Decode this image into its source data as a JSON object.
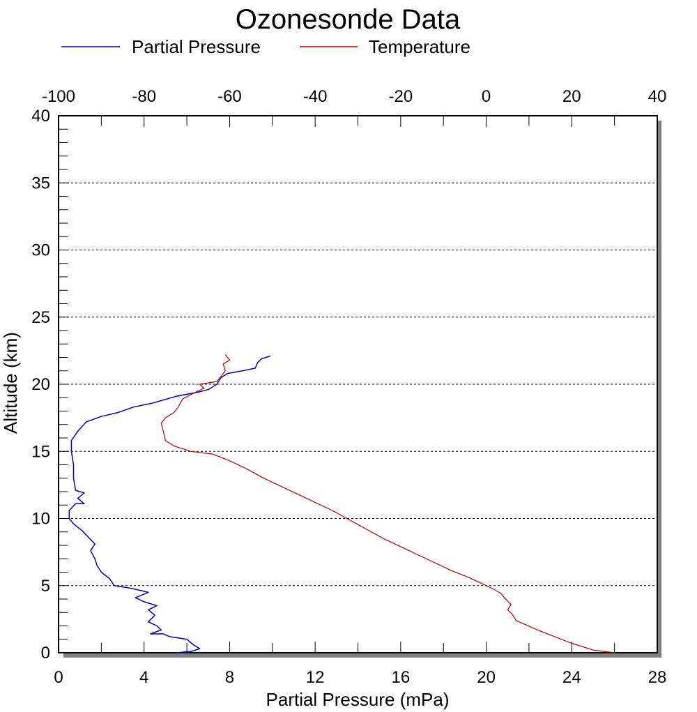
{
  "chart_data": {
    "type": "line",
    "title": "Ozonesonde Data",
    "xlabel": "Partial Pressure (mPa)",
    "ylabel": "Altitude (km)",
    "x_bottom": {
      "range": [
        0,
        28
      ],
      "ticks": [
        "0",
        "4",
        "8",
        "12",
        "16",
        "20",
        "24",
        "28"
      ],
      "tick_values": [
        0,
        4,
        8,
        12,
        16,
        20,
        24,
        28
      ]
    },
    "x_top": {
      "range": [
        -100,
        40
      ],
      "ticks": [
        "-100",
        "-80",
        "-60",
        "-40",
        "-20",
        "0",
        "20",
        "40"
      ],
      "tick_values": [
        -100,
        -80,
        -60,
        -40,
        -20,
        0,
        20,
        40
      ]
    },
    "y_left": {
      "range": [
        0,
        40
      ],
      "ticks": [
        "0",
        "5",
        "10",
        "15",
        "20",
        "25",
        "30",
        "35",
        "40"
      ],
      "tick_values": [
        0,
        5,
        10,
        15,
        20,
        25,
        30,
        35,
        40
      ]
    },
    "grid": "horizontal dashed",
    "legend_position": "top",
    "series": [
      {
        "name": "Partial Pressure",
        "color": "#0000b4",
        "axis": "bottom",
        "points": [
          [
            5.5,
            0.0
          ],
          [
            6.2,
            0.1
          ],
          [
            6.6,
            0.3
          ],
          [
            6.3,
            0.6
          ],
          [
            6.0,
            1.0
          ],
          [
            5.2,
            1.2
          ],
          [
            4.9,
            1.4
          ],
          [
            4.3,
            1.4
          ],
          [
            4.8,
            1.7
          ],
          [
            4.6,
            2.0
          ],
          [
            4.2,
            2.3
          ],
          [
            4.5,
            2.8
          ],
          [
            4.2,
            3.2
          ],
          [
            4.6,
            3.5
          ],
          [
            4.0,
            3.8
          ],
          [
            3.6,
            4.1
          ],
          [
            4.2,
            4.5
          ],
          [
            3.4,
            4.8
          ],
          [
            2.6,
            5.0
          ],
          [
            2.4,
            5.5
          ],
          [
            2.0,
            6.0
          ],
          [
            1.8,
            6.5
          ],
          [
            1.7,
            7.0
          ],
          [
            1.5,
            7.6
          ],
          [
            1.7,
            8.1
          ],
          [
            1.4,
            8.6
          ],
          [
            1.1,
            9.1
          ],
          [
            0.7,
            9.6
          ],
          [
            0.5,
            10.0
          ],
          [
            0.5,
            10.6
          ],
          [
            0.8,
            11.1
          ],
          [
            1.2,
            11.1
          ],
          [
            0.9,
            11.5
          ],
          [
            1.2,
            11.9
          ],
          [
            0.8,
            12.1
          ],
          [
            0.7,
            13.0
          ],
          [
            0.7,
            14.0
          ],
          [
            0.6,
            15.0
          ],
          [
            0.6,
            15.8
          ],
          [
            0.9,
            16.5
          ],
          [
            1.3,
            17.2
          ],
          [
            2.0,
            17.6
          ],
          [
            2.8,
            17.9
          ],
          [
            3.5,
            18.3
          ],
          [
            4.4,
            18.6
          ],
          [
            5.5,
            19.1
          ],
          [
            6.5,
            19.4
          ],
          [
            7.0,
            19.6
          ],
          [
            7.4,
            20.0
          ],
          [
            7.6,
            20.5
          ],
          [
            7.9,
            20.8
          ],
          [
            8.6,
            21.0
          ],
          [
            9.2,
            21.2
          ],
          [
            9.3,
            21.6
          ],
          [
            9.5,
            21.9
          ],
          [
            9.9,
            22.1
          ]
        ]
      },
      {
        "name": "Temperature",
        "color": "#b40000",
        "axis": "top",
        "points": [
          [
            30.0,
            0.0
          ],
          [
            25.0,
            0.2
          ],
          [
            20.0,
            0.7
          ],
          [
            16.0,
            1.2
          ],
          [
            12.0,
            1.7
          ],
          [
            7.0,
            2.4
          ],
          [
            6.0,
            2.9
          ],
          [
            5.0,
            3.2
          ],
          [
            5.8,
            3.6
          ],
          [
            4.5,
            4.0
          ],
          [
            3.5,
            4.4
          ],
          [
            2.0,
            4.7
          ],
          [
            0.0,
            5.0
          ],
          [
            -4.0,
            5.6
          ],
          [
            -8.0,
            6.1
          ],
          [
            -12.0,
            6.7
          ],
          [
            -16.0,
            7.3
          ],
          [
            -20.0,
            7.9
          ],
          [
            -24.0,
            8.5
          ],
          [
            -28.0,
            9.2
          ],
          [
            -32.0,
            9.9
          ],
          [
            -36.0,
            10.6
          ],
          [
            -40.0,
            11.2
          ],
          [
            -44.0,
            11.8
          ],
          [
            -48.0,
            12.4
          ],
          [
            -52.0,
            13.0
          ],
          [
            -56.0,
            13.7
          ],
          [
            -60.0,
            14.3
          ],
          [
            -64.0,
            14.8
          ],
          [
            -69.0,
            15.0
          ],
          [
            -73.0,
            15.4
          ],
          [
            -75.0,
            15.8
          ],
          [
            -75.5,
            16.5
          ],
          [
            -76.0,
            17.1
          ],
          [
            -75.0,
            17.5
          ],
          [
            -73.0,
            17.9
          ],
          [
            -72.0,
            18.3
          ],
          [
            -71.0,
            18.9
          ],
          [
            -68.0,
            19.4
          ],
          [
            -66.0,
            19.7
          ],
          [
            -67.0,
            20.0
          ],
          [
            -63.0,
            20.2
          ],
          [
            -62.0,
            20.6
          ],
          [
            -61.0,
            21.0
          ],
          [
            -61.5,
            21.5
          ],
          [
            -60.0,
            21.8
          ],
          [
            -61.0,
            22.2
          ]
        ]
      }
    ]
  }
}
